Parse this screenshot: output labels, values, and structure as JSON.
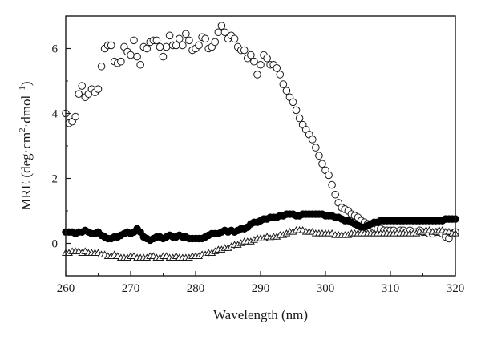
{
  "chart_data": {
    "type": "scatter",
    "title": "",
    "xlabel": "Wavelength (nm)",
    "ylabel": {
      "prefix": "MRE (deg·cm",
      "sup1": "2",
      "middle": "·dmol",
      "sup2": "−1",
      "suffix": ")"
    },
    "xlim": [
      260,
      320
    ],
    "ylim": [
      -1,
      7
    ],
    "xticks": [
      260,
      270,
      280,
      290,
      300,
      310,
      320
    ],
    "yticks": [
      0,
      2,
      4,
      6
    ],
    "grid": false,
    "legend": "none",
    "series": [
      {
        "marker": "open-circle",
        "color": "#1a1a1a",
        "x": [
          260,
          260.5,
          261,
          261.5,
          262,
          262.5,
          263,
          263.5,
          264,
          264.5,
          265,
          265.5,
          266,
          266.5,
          267,
          267.5,
          268,
          268.5,
          269,
          269.5,
          270,
          270.5,
          271,
          271.5,
          272,
          272.5,
          273,
          273.5,
          274,
          274.5,
          275,
          275.5,
          276,
          276.5,
          277,
          277.5,
          278,
          278.5,
          279,
          279.5,
          280,
          280.5,
          281,
          281.5,
          282,
          282.5,
          283,
          283.5,
          284,
          284.5,
          285,
          285.5,
          286,
          286.5,
          287,
          287.5,
          288,
          288.5,
          289,
          289.5,
          290,
          290.5,
          291,
          291.5,
          292,
          292.5,
          293,
          293.5,
          294,
          294.5,
          295,
          295.5,
          296,
          296.5,
          297,
          297.5,
          298,
          298.5,
          299,
          299.5,
          300,
          300.5,
          301,
          301.5,
          302,
          302.5,
          303,
          303.5,
          304,
          304.5,
          305,
          305.5,
          306,
          306.5,
          307,
          307.5,
          308,
          308.5,
          309,
          309.5,
          310,
          310.5,
          311,
          311.5,
          312,
          312.5,
          313,
          313.5,
          314,
          314.5,
          315,
          315.5,
          316,
          316.5,
          317,
          317.5,
          318,
          318.5,
          319,
          319.5,
          320
        ],
        "y": [
          4.0,
          3.7,
          3.75,
          3.9,
          4.6,
          4.85,
          4.5,
          4.6,
          4.75,
          4.65,
          4.75,
          5.45,
          6.0,
          6.1,
          6.1,
          5.6,
          5.55,
          5.6,
          6.05,
          5.9,
          5.8,
          6.25,
          5.75,
          5.5,
          6.05,
          6.0,
          6.2,
          6.25,
          6.25,
          6.05,
          5.75,
          6.05,
          6.4,
          6.1,
          6.1,
          6.3,
          6.1,
          6.45,
          6.25,
          5.95,
          6.0,
          6.1,
          6.35,
          6.3,
          6.0,
          6.05,
          6.2,
          6.5,
          6.7,
          6.5,
          6.3,
          6.4,
          6.3,
          6.05,
          5.95,
          5.95,
          5.7,
          5.8,
          5.6,
          5.2,
          5.5,
          5.8,
          5.7,
          5.5,
          5.5,
          5.4,
          5.2,
          4.9,
          4.7,
          4.5,
          4.35,
          4.1,
          3.85,
          3.65,
          3.5,
          3.35,
          3.2,
          2.95,
          2.7,
          2.45,
          2.25,
          2.1,
          1.8,
          1.5,
          1.25,
          1.1,
          1.05,
          1.0,
          0.9,
          0.85,
          0.8,
          0.7,
          0.65,
          0.6,
          0.55,
          0.5,
          0.45,
          0.45,
          0.4,
          0.4,
          0.4,
          0.4,
          0.35,
          0.4,
          0.4,
          0.35,
          0.4,
          0.35,
          0.35,
          0.4,
          0.35,
          0.35,
          0.3,
          0.3,
          0.35,
          0.35,
          0.3,
          0.2,
          0.15,
          0.3,
          0.35
        ]
      },
      {
        "marker": "filled-circle",
        "color": "#000000",
        "x": [
          260,
          260.5,
          261,
          261.5,
          262,
          262.5,
          263,
          263.5,
          264,
          264.5,
          265,
          265.5,
          266,
          266.5,
          267,
          267.5,
          268,
          268.5,
          269,
          269.5,
          270,
          270.5,
          271,
          271.5,
          272,
          272.5,
          273,
          273.5,
          274,
          274.5,
          275,
          275.5,
          276,
          276.5,
          277,
          277.5,
          278,
          278.5,
          279,
          279.5,
          280,
          280.5,
          281,
          281.5,
          282,
          282.5,
          283,
          283.5,
          284,
          284.5,
          285,
          285.5,
          286,
          286.5,
          287,
          287.5,
          288,
          288.5,
          289,
          289.5,
          290,
          290.5,
          291,
          291.5,
          292,
          292.5,
          293,
          293.5,
          294,
          294.5,
          295,
          295.5,
          296,
          296.5,
          297,
          297.5,
          298,
          298.5,
          299,
          299.5,
          300,
          300.5,
          301,
          301.5,
          302,
          302.5,
          303,
          303.5,
          304,
          304.5,
          305,
          305.5,
          306,
          306.5,
          307,
          307.5,
          308,
          308.5,
          309,
          309.5,
          310,
          310.5,
          311,
          311.5,
          312,
          312.5,
          313,
          313.5,
          314,
          314.5,
          315,
          315.5,
          316,
          316.5,
          317,
          317.5,
          318,
          318.5,
          319,
          319.5,
          320
        ],
        "y": [
          0.35,
          0.35,
          0.35,
          0.3,
          0.35,
          0.35,
          0.4,
          0.35,
          0.3,
          0.3,
          0.35,
          0.25,
          0.2,
          0.15,
          0.15,
          0.2,
          0.2,
          0.25,
          0.3,
          0.35,
          0.3,
          0.35,
          0.45,
          0.35,
          0.2,
          0.15,
          0.1,
          0.15,
          0.2,
          0.2,
          0.15,
          0.2,
          0.25,
          0.2,
          0.2,
          0.25,
          0.2,
          0.2,
          0.15,
          0.15,
          0.15,
          0.15,
          0.15,
          0.2,
          0.25,
          0.3,
          0.3,
          0.3,
          0.35,
          0.4,
          0.35,
          0.4,
          0.35,
          0.4,
          0.45,
          0.45,
          0.5,
          0.6,
          0.65,
          0.65,
          0.7,
          0.75,
          0.75,
          0.8,
          0.8,
          0.8,
          0.85,
          0.85,
          0.9,
          0.9,
          0.9,
          0.85,
          0.85,
          0.9,
          0.9,
          0.9,
          0.9,
          0.9,
          0.9,
          0.9,
          0.85,
          0.85,
          0.85,
          0.8,
          0.8,
          0.75,
          0.7,
          0.7,
          0.65,
          0.6,
          0.55,
          0.5,
          0.5,
          0.55,
          0.6,
          0.65,
          0.65,
          0.7,
          0.7,
          0.7,
          0.7,
          0.7,
          0.7,
          0.7,
          0.7,
          0.7,
          0.7,
          0.7,
          0.7,
          0.7,
          0.7,
          0.7,
          0.7,
          0.7,
          0.7,
          0.7,
          0.7,
          0.75,
          0.75,
          0.75,
          0.75
        ]
      },
      {
        "marker": "open-triangle",
        "color": "#1a1a1a",
        "x": [
          260,
          260.5,
          261,
          261.5,
          262,
          262.5,
          263,
          263.5,
          264,
          264.5,
          265,
          265.5,
          266,
          266.5,
          267,
          267.5,
          268,
          268.5,
          269,
          269.5,
          270,
          270.5,
          271,
          271.5,
          272,
          272.5,
          273,
          273.5,
          274,
          274.5,
          275,
          275.5,
          276,
          276.5,
          277,
          277.5,
          278,
          278.5,
          279,
          279.5,
          280,
          280.5,
          281,
          281.5,
          282,
          282.5,
          283,
          283.5,
          284,
          284.5,
          285,
          285.5,
          286,
          286.5,
          287,
          287.5,
          288,
          288.5,
          289,
          289.5,
          290,
          290.5,
          291,
          291.5,
          292,
          292.5,
          293,
          293.5,
          294,
          294.5,
          295,
          295.5,
          296,
          296.5,
          297,
          297.5,
          298,
          298.5,
          299,
          299.5,
          300,
          300.5,
          301,
          301.5,
          302,
          302.5,
          303,
          303.5,
          304,
          304.5,
          305,
          305.5,
          306,
          306.5,
          307,
          307.5,
          308,
          308.5,
          309,
          309.5,
          310,
          310.5,
          311,
          311.5,
          312,
          312.5,
          313,
          313.5,
          314,
          314.5,
          315,
          315.5,
          316,
          316.5,
          317,
          317.5,
          318,
          318.5,
          319,
          319.5,
          320
        ],
        "y": [
          -0.3,
          -0.3,
          -0.25,
          -0.25,
          -0.25,
          -0.3,
          -0.25,
          -0.3,
          -0.3,
          -0.3,
          -0.3,
          -0.35,
          -0.35,
          -0.4,
          -0.4,
          -0.35,
          -0.4,
          -0.45,
          -0.45,
          -0.45,
          -0.4,
          -0.4,
          -0.45,
          -0.45,
          -0.45,
          -0.45,
          -0.4,
          -0.4,
          -0.45,
          -0.45,
          -0.4,
          -0.4,
          -0.45,
          -0.45,
          -0.4,
          -0.45,
          -0.45,
          -0.45,
          -0.45,
          -0.4,
          -0.4,
          -0.4,
          -0.35,
          -0.35,
          -0.3,
          -0.3,
          -0.25,
          -0.2,
          -0.2,
          -0.15,
          -0.15,
          -0.1,
          -0.05,
          -0.05,
          0.0,
          0.05,
          0.05,
          0.05,
          0.1,
          0.15,
          0.15,
          0.15,
          0.2,
          0.15,
          0.2,
          0.2,
          0.25,
          0.25,
          0.3,
          0.35,
          0.35,
          0.4,
          0.4,
          0.4,
          0.35,
          0.35,
          0.35,
          0.3,
          0.3,
          0.3,
          0.3,
          0.3,
          0.3,
          0.25,
          0.25,
          0.25,
          0.25,
          0.25,
          0.3,
          0.3,
          0.3,
          0.3,
          0.3,
          0.3,
          0.3,
          0.3,
          0.3,
          0.3,
          0.3,
          0.3,
          0.3,
          0.3,
          0.3,
          0.3,
          0.3,
          0.3,
          0.3,
          0.3,
          0.3,
          0.35,
          0.35,
          0.4,
          0.4,
          0.35,
          0.35,
          0.4,
          0.4,
          0.35,
          0.35,
          0.3,
          0.3
        ]
      }
    ]
  }
}
